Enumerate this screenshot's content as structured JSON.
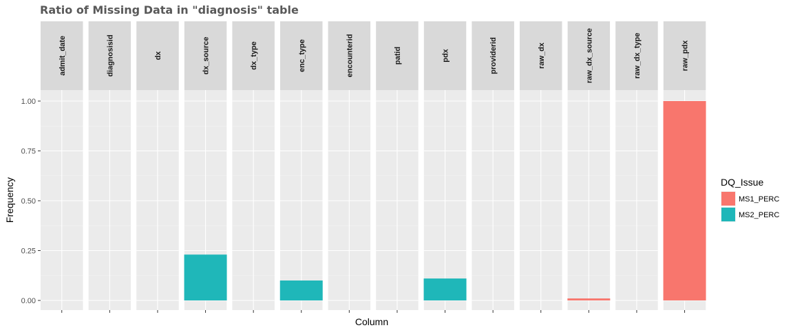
{
  "chart_data": {
    "type": "bar",
    "title": "Ratio of Missing Data in \"diagnosis\" table",
    "xlabel": "Column",
    "ylabel": "Frequency",
    "ylim": [
      0,
      1
    ],
    "yticks": [
      "0.00",
      "0.25",
      "0.50",
      "0.75",
      "1.00"
    ],
    "ytick_values": [
      0,
      0.25,
      0.5,
      0.75,
      1.0
    ],
    "grid": true,
    "legend_position": "right",
    "legend_title": "DQ_Issue",
    "categories": [
      "admit_date",
      "diagnosisid",
      "dx",
      "dx_source",
      "dx_type",
      "enc_type",
      "encounterid",
      "patid",
      "pdx",
      "providerid",
      "raw_dx",
      "raw_dx_source",
      "raw_dx_type",
      "raw_pdx"
    ],
    "series": [
      {
        "name": "MS1_PERC",
        "color": "#F8766D",
        "values": [
          0,
          0,
          0,
          0,
          0,
          0,
          0,
          0,
          0,
          0,
          0,
          0.01,
          0,
          1.0
        ]
      },
      {
        "name": "MS2_PERC",
        "color": "#1FB7B9",
        "values": [
          0,
          0,
          0,
          0.23,
          0,
          0.1,
          0,
          0,
          0.11,
          0,
          0,
          0,
          0,
          0
        ]
      }
    ]
  }
}
